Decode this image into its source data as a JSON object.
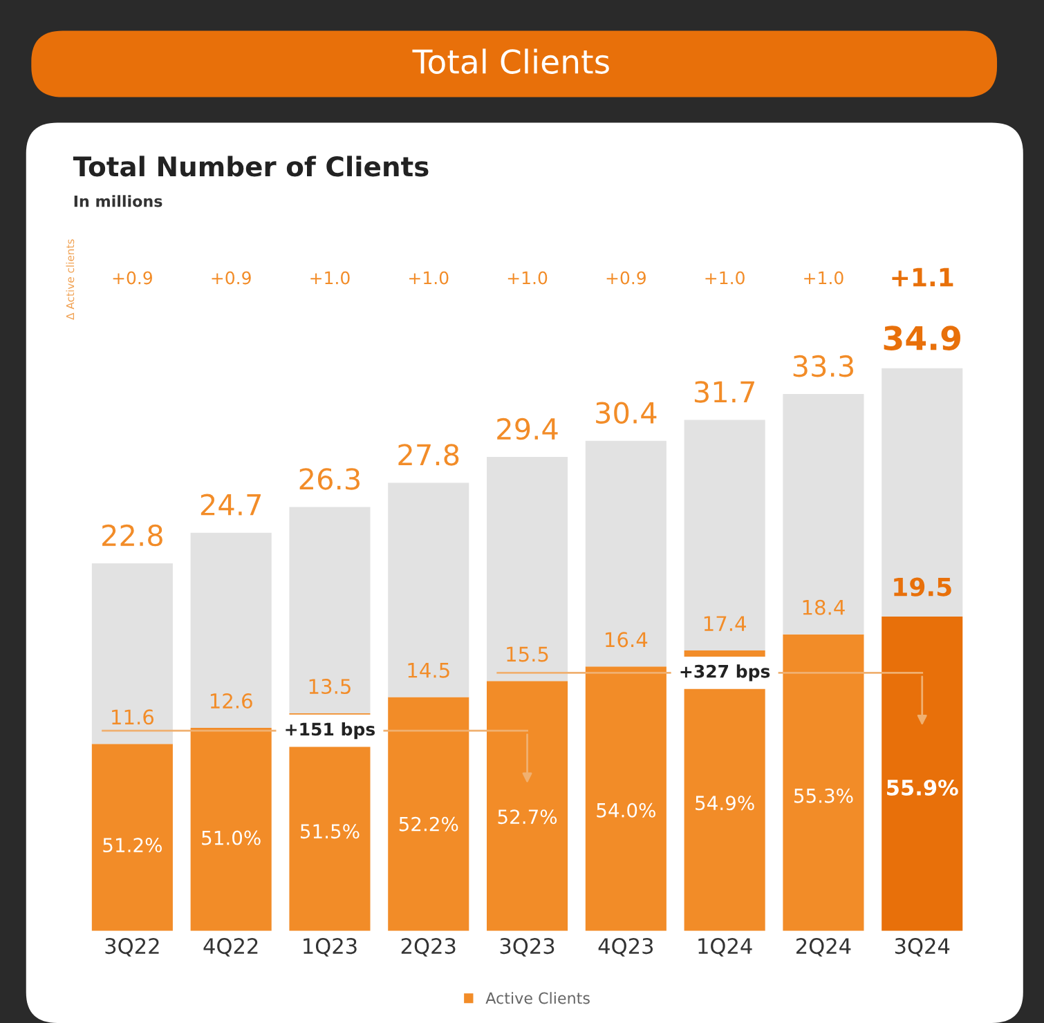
{
  "chart_data": {
    "type": "bar",
    "stacked": true,
    "title": "Total Clients",
    "subtitle": "Total Number of Clients\nIn millions",
    "categories": [
      "3Q22",
      "4Q22",
      "1Q23",
      "2Q23",
      "3Q23",
      "4Q23",
      "1Q24",
      "2Q24",
      "3Q24"
    ],
    "series": [
      {
        "name": "Active Clients",
        "color": "#f28c28",
        "colors": [
          "#f28c28",
          "#f28c28",
          "#f28c28",
          "#f28c28",
          "#f28c28",
          "#f28c28",
          "#f28c28",
          "#f28c28",
          "#e8700a"
        ],
        "values": [
          11.6,
          12.6,
          13.5,
          14.5,
          15.5,
          16.4,
          17.4,
          18.4,
          19.5
        ],
        "value_labels": [
          "11.6",
          "12.6",
          "13.5",
          "14.5",
          "15.5",
          "16.4",
          "17.4",
          "18.4",
          "19.5"
        ]
      },
      {
        "color": "#e2e2e2",
        "values": [
          11.2,
          12.1,
          12.8,
          13.3,
          13.9,
          14.0,
          14.3,
          14.9,
          15.4
        ]
      }
    ],
    "totals": [
      "22.8",
      "24.7",
      "26.3",
      "27.8",
      "29.4",
      "30.4",
      "31.7",
      "33.3",
      "34.9"
    ],
    "tick_labels": "x",
    "legend": "bottom",
    "annotations": [
      "Δ Active clients",
      "+0.9",
      "+0.9",
      "+1.0",
      "+1.0",
      "+1.0",
      "+0.9",
      "+1.0",
      "+1.0",
      "+1.1",
      "51.2%",
      "51.0%",
      "51.5%",
      "52.2%",
      "52.7%",
      "54.0%",
      "54.9%",
      "55.3%",
      "55.9%",
      "+151 bps",
      "+327 bps"
    ]
  }
}
